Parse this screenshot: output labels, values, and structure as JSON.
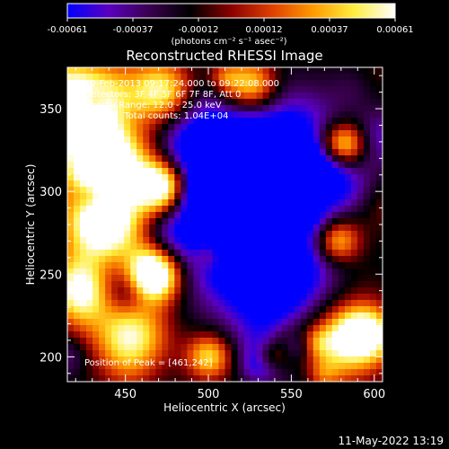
{
  "chart_data": {
    "type": "heatmap",
    "title": "Reconstructed RHESSI Image",
    "xlabel": "Heliocentric X (arcsec)",
    "ylabel": "Heliocentric Y (arcsec)",
    "xlim": [
      415,
      605
    ],
    "ylim": [
      185,
      375
    ],
    "xticks": [
      450,
      500,
      550,
      600
    ],
    "yticks": [
      200,
      250,
      300,
      350
    ],
    "colorbar": {
      "range": [
        -0.00061,
        0.00061
      ],
      "ticks": [
        "-0.00061",
        "-0.00037",
        "-0.00012",
        "0.00012",
        "0.00037",
        "0.00061"
      ],
      "unit_label": "(photons cm⁻² s⁻¹ asec⁻²)",
      "colors": [
        "#0000ff",
        "#5a00c0",
        "#3a0050",
        "#000000",
        "#8a0000",
        "#e04000",
        "#ff9a00",
        "#ffee40",
        "#ffffff"
      ]
    },
    "annotations": [
      "19-Feb-2013 09:17:24.000 to 09:22:08.000",
      "Detectors: 3F 4F 5F 6F 7F 8F, Att 0",
      "Energy Range: 12.0 - 25.0 keV",
      "Clean     Total counts: 1.04E+04"
    ],
    "peak_label": "Position of Peak = [461,242]",
    "peak_position": [
      461,
      242
    ]
  },
  "footer": {
    "timestamp": "11-May-2022 13:19"
  }
}
